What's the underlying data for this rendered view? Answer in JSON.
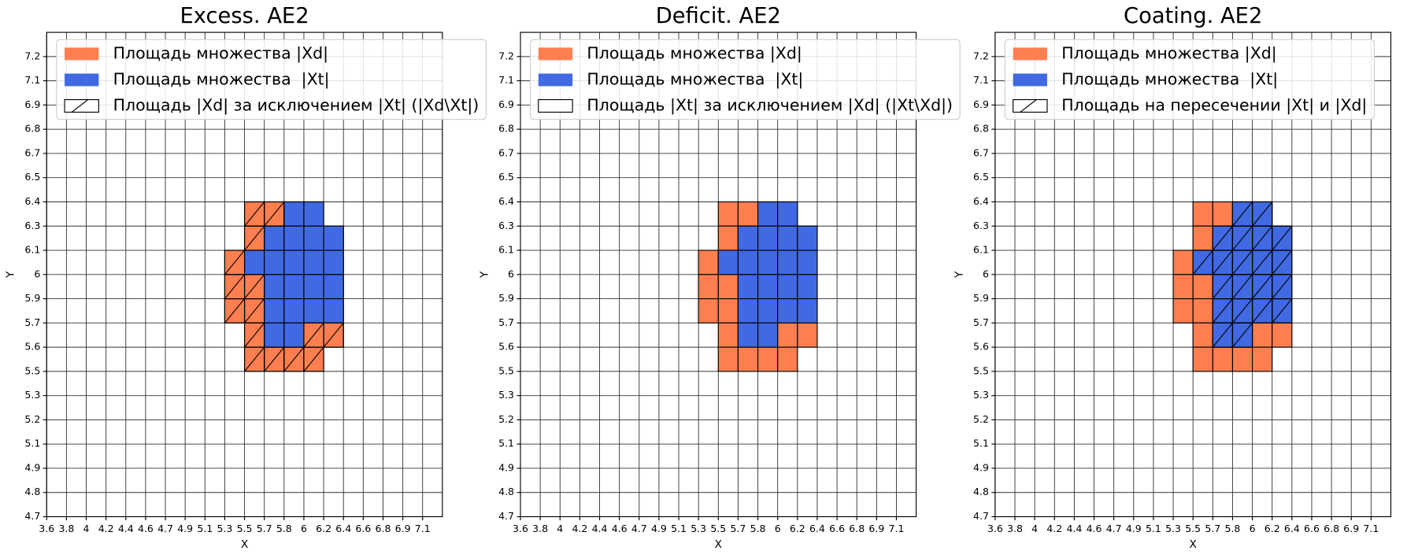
{
  "chart_data": [
    {
      "type": "grid-cells",
      "title": "Excess. AE2",
      "xlabel": "X",
      "ylabel": "Y",
      "xticks": [
        3.6,
        3.8,
        4.0,
        4.2,
        4.4,
        4.6,
        4.7,
        4.9,
        5.1,
        5.3,
        5.5,
        5.7,
        5.8,
        6.0,
        6.2,
        6.4,
        6.6,
        6.8,
        6.9,
        7.1
      ],
      "yticks": [
        4.7,
        4.8,
        4.9,
        5.1,
        5.2,
        5.3,
        5.5,
        5.6,
        5.7,
        5.9,
        6.0,
        6.1,
        6.3,
        6.4,
        6.5,
        6.7,
        6.8,
        6.9,
        7.1,
        7.2
      ],
      "grid": true,
      "legend": "upper left",
      "series": [
        {
          "name": "Площадь множества |Xd|",
          "color": "#ff7f50",
          "cells": [
            [
              5.5,
              6.3
            ],
            [
              5.7,
              6.3
            ],
            [
              5.8,
              6.3
            ],
            [
              6.0,
              6.3
            ],
            [
              5.5,
              6.1
            ],
            [
              5.7,
              6.1
            ],
            [
              5.8,
              6.1
            ],
            [
              6.0,
              6.1
            ],
            [
              6.2,
              6.1
            ],
            [
              5.3,
              6.0
            ],
            [
              5.5,
              6.0
            ],
            [
              5.7,
              6.0
            ],
            [
              5.8,
              6.0
            ],
            [
              6.0,
              6.0
            ],
            [
              6.2,
              6.0
            ],
            [
              5.3,
              5.9
            ],
            [
              5.5,
              5.9
            ],
            [
              5.7,
              5.9
            ],
            [
              5.8,
              5.9
            ],
            [
              6.0,
              5.9
            ],
            [
              6.2,
              5.9
            ],
            [
              5.3,
              5.7
            ],
            [
              5.5,
              5.7
            ],
            [
              5.7,
              5.7
            ],
            [
              5.8,
              5.7
            ],
            [
              6.0,
              5.7
            ],
            [
              6.2,
              5.7
            ],
            [
              5.5,
              5.6
            ],
            [
              5.7,
              5.6
            ],
            [
              5.8,
              5.6
            ],
            [
              6.0,
              5.6
            ],
            [
              6.2,
              5.6
            ],
            [
              5.5,
              5.5
            ],
            [
              5.7,
              5.5
            ],
            [
              5.8,
              5.5
            ],
            [
              6.0,
              5.5
            ]
          ]
        },
        {
          "name": "Площадь множества  |Xt|",
          "color": "#4169e1",
          "cells": [
            [
              5.8,
              6.3
            ],
            [
              6.0,
              6.3
            ],
            [
              5.7,
              6.1
            ],
            [
              5.8,
              6.1
            ],
            [
              6.0,
              6.1
            ],
            [
              6.2,
              6.1
            ],
            [
              5.5,
              6.0
            ],
            [
              5.7,
              6.0
            ],
            [
              5.8,
              6.0
            ],
            [
              6.0,
              6.0
            ],
            [
              6.2,
              6.0
            ],
            [
              5.7,
              5.9
            ],
            [
              5.8,
              5.9
            ],
            [
              6.0,
              5.9
            ],
            [
              6.2,
              5.9
            ],
            [
              5.7,
              5.7
            ],
            [
              5.8,
              5.7
            ],
            [
              6.0,
              5.7
            ],
            [
              6.2,
              5.7
            ],
            [
              5.7,
              5.6
            ],
            [
              5.8,
              5.6
            ]
          ]
        },
        {
          "name": "Площадь |Xd| за исключением |Xt| (|Xd\\Xt|)",
          "hatch": "/",
          "cells": [
            [
              5.5,
              6.3
            ],
            [
              5.7,
              6.3
            ],
            [
              5.5,
              6.1
            ],
            [
              5.3,
              6.0
            ],
            [
              5.3,
              5.9
            ],
            [
              5.5,
              5.9
            ],
            [
              5.3,
              5.7
            ],
            [
              5.5,
              5.7
            ],
            [
              5.5,
              5.6
            ],
            [
              6.0,
              5.6
            ],
            [
              6.2,
              5.6
            ],
            [
              5.5,
              5.5
            ],
            [
              5.7,
              5.5
            ],
            [
              5.8,
              5.5
            ],
            [
              6.0,
              5.5
            ]
          ]
        }
      ]
    },
    {
      "type": "grid-cells",
      "title": "Deficit. AE2",
      "xlabel": "X",
      "ylabel": "Y",
      "xticks": [
        3.6,
        3.8,
        4.0,
        4.2,
        4.4,
        4.6,
        4.7,
        4.9,
        5.1,
        5.3,
        5.5,
        5.7,
        5.8,
        6.0,
        6.2,
        6.4,
        6.6,
        6.8,
        6.9,
        7.1
      ],
      "yticks": [
        4.7,
        4.8,
        4.9,
        5.1,
        5.2,
        5.3,
        5.5,
        5.6,
        5.7,
        5.9,
        6.0,
        6.1,
        6.3,
        6.4,
        6.5,
        6.7,
        6.8,
        6.9,
        7.1,
        7.2
      ],
      "grid": true,
      "legend": "upper left",
      "series": [
        {
          "name": "Площадь множества |Xd|",
          "color": "#ff7f50",
          "cells": [
            [
              5.5,
              6.3
            ],
            [
              5.7,
              6.3
            ],
            [
              5.8,
              6.3
            ],
            [
              6.0,
              6.3
            ],
            [
              5.5,
              6.1
            ],
            [
              5.7,
              6.1
            ],
            [
              5.8,
              6.1
            ],
            [
              6.0,
              6.1
            ],
            [
              6.2,
              6.1
            ],
            [
              5.3,
              6.0
            ],
            [
              5.5,
              6.0
            ],
            [
              5.7,
              6.0
            ],
            [
              5.8,
              6.0
            ],
            [
              6.0,
              6.0
            ],
            [
              6.2,
              6.0
            ],
            [
              5.3,
              5.9
            ],
            [
              5.5,
              5.9
            ],
            [
              5.7,
              5.9
            ],
            [
              5.8,
              5.9
            ],
            [
              6.0,
              5.9
            ],
            [
              6.2,
              5.9
            ],
            [
              5.3,
              5.7
            ],
            [
              5.5,
              5.7
            ],
            [
              5.7,
              5.7
            ],
            [
              5.8,
              5.7
            ],
            [
              6.0,
              5.7
            ],
            [
              6.2,
              5.7
            ],
            [
              5.5,
              5.6
            ],
            [
              5.7,
              5.6
            ],
            [
              5.8,
              5.6
            ],
            [
              6.0,
              5.6
            ],
            [
              6.2,
              5.6
            ],
            [
              5.5,
              5.5
            ],
            [
              5.7,
              5.5
            ],
            [
              5.8,
              5.5
            ],
            [
              6.0,
              5.5
            ]
          ]
        },
        {
          "name": "Площадь множества  |Xt|",
          "color": "#4169e1",
          "cells": [
            [
              5.8,
              6.3
            ],
            [
              6.0,
              6.3
            ],
            [
              5.7,
              6.1
            ],
            [
              5.8,
              6.1
            ],
            [
              6.0,
              6.1
            ],
            [
              6.2,
              6.1
            ],
            [
              5.5,
              6.0
            ],
            [
              5.7,
              6.0
            ],
            [
              5.8,
              6.0
            ],
            [
              6.0,
              6.0
            ],
            [
              6.2,
              6.0
            ],
            [
              5.7,
              5.9
            ],
            [
              5.8,
              5.9
            ],
            [
              6.0,
              5.9
            ],
            [
              6.2,
              5.9
            ],
            [
              5.7,
              5.7
            ],
            [
              5.8,
              5.7
            ],
            [
              6.0,
              5.7
            ],
            [
              6.2,
              5.7
            ],
            [
              5.7,
              5.6
            ],
            [
              5.8,
              5.6
            ]
          ]
        },
        {
          "name": "Площадь |Xt| за исключением |Xd| (|Xt\\Xd|)",
          "cells": []
        }
      ]
    },
    {
      "type": "grid-cells",
      "title": "Coating. AE2",
      "xlabel": "X",
      "ylabel": "Y",
      "xticks": [
        3.6,
        3.8,
        4.0,
        4.2,
        4.4,
        4.6,
        4.7,
        4.9,
        5.1,
        5.3,
        5.5,
        5.7,
        5.8,
        6.0,
        6.2,
        6.4,
        6.6,
        6.8,
        6.9,
        7.1
      ],
      "yticks": [
        4.7,
        4.8,
        4.9,
        5.1,
        5.2,
        5.3,
        5.5,
        5.6,
        5.7,
        5.9,
        6.0,
        6.1,
        6.3,
        6.4,
        6.5,
        6.7,
        6.8,
        6.9,
        7.1,
        7.2
      ],
      "grid": true,
      "legend": "upper left",
      "series": [
        {
          "name": "Площадь множества |Xd|",
          "color": "#ff7f50",
          "cells": [
            [
              5.5,
              6.3
            ],
            [
              5.7,
              6.3
            ],
            [
              5.8,
              6.3
            ],
            [
              6.0,
              6.3
            ],
            [
              5.5,
              6.1
            ],
            [
              5.7,
              6.1
            ],
            [
              5.8,
              6.1
            ],
            [
              6.0,
              6.1
            ],
            [
              6.2,
              6.1
            ],
            [
              5.3,
              6.0
            ],
            [
              5.5,
              6.0
            ],
            [
              5.7,
              6.0
            ],
            [
              5.8,
              6.0
            ],
            [
              6.0,
              6.0
            ],
            [
              6.2,
              6.0
            ],
            [
              5.3,
              5.9
            ],
            [
              5.5,
              5.9
            ],
            [
              5.7,
              5.9
            ],
            [
              5.8,
              5.9
            ],
            [
              6.0,
              5.9
            ],
            [
              6.2,
              5.9
            ],
            [
              5.3,
              5.7
            ],
            [
              5.5,
              5.7
            ],
            [
              5.7,
              5.7
            ],
            [
              5.8,
              5.7
            ],
            [
              6.0,
              5.7
            ],
            [
              6.2,
              5.7
            ],
            [
              5.5,
              5.6
            ],
            [
              5.7,
              5.6
            ],
            [
              5.8,
              5.6
            ],
            [
              6.0,
              5.6
            ],
            [
              6.2,
              5.6
            ],
            [
              5.5,
              5.5
            ],
            [
              5.7,
              5.5
            ],
            [
              5.8,
              5.5
            ],
            [
              6.0,
              5.5
            ]
          ]
        },
        {
          "name": "Площадь множества  |Xt|",
          "color": "#4169e1",
          "cells": [
            [
              5.8,
              6.3
            ],
            [
              6.0,
              6.3
            ],
            [
              5.7,
              6.1
            ],
            [
              5.8,
              6.1
            ],
            [
              6.0,
              6.1
            ],
            [
              6.2,
              6.1
            ],
            [
              5.5,
              6.0
            ],
            [
              5.7,
              6.0
            ],
            [
              5.8,
              6.0
            ],
            [
              6.0,
              6.0
            ],
            [
              6.2,
              6.0
            ],
            [
              5.7,
              5.9
            ],
            [
              5.8,
              5.9
            ],
            [
              6.0,
              5.9
            ],
            [
              6.2,
              5.9
            ],
            [
              5.7,
              5.7
            ],
            [
              5.8,
              5.7
            ],
            [
              6.0,
              5.7
            ],
            [
              6.2,
              5.7
            ],
            [
              5.7,
              5.6
            ],
            [
              5.8,
              5.6
            ]
          ]
        },
        {
          "name": "Площадь на пересечении |Xt| и |Xd|",
          "hatch": "/",
          "cells": [
            [
              5.8,
              6.3
            ],
            [
              6.0,
              6.3
            ],
            [
              5.7,
              6.1
            ],
            [
              5.8,
              6.1
            ],
            [
              6.0,
              6.1
            ],
            [
              6.2,
              6.1
            ],
            [
              5.5,
              6.0
            ],
            [
              5.7,
              6.0
            ],
            [
              5.8,
              6.0
            ],
            [
              6.0,
              6.0
            ],
            [
              6.2,
              6.0
            ],
            [
              5.7,
              5.9
            ],
            [
              5.8,
              5.9
            ],
            [
              6.0,
              5.9
            ],
            [
              6.2,
              5.9
            ],
            [
              5.7,
              5.7
            ],
            [
              5.8,
              5.7
            ],
            [
              6.0,
              5.7
            ],
            [
              6.2,
              5.7
            ],
            [
              5.7,
              5.6
            ],
            [
              5.8,
              5.6
            ]
          ]
        }
      ]
    }
  ]
}
